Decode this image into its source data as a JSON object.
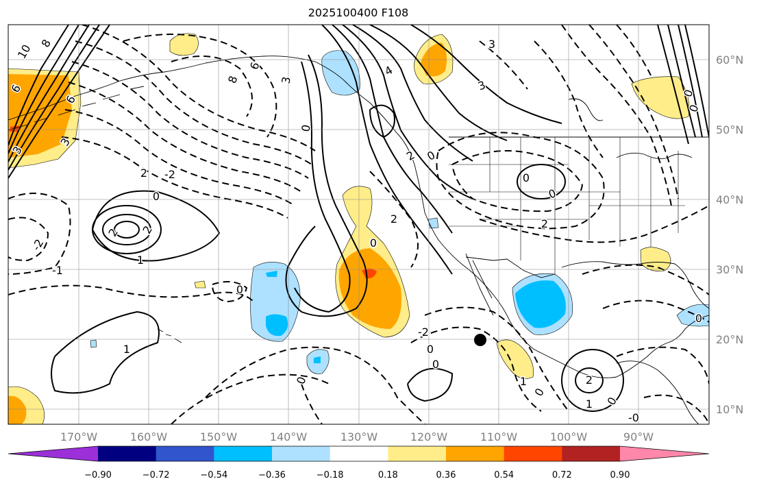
{
  "title": "2025100400 F108",
  "map": {
    "projection": "cylindrical",
    "lon_range": [
      -180,
      -80
    ],
    "lat_range": [
      8,
      65
    ],
    "lat_ticks": [
      "60°N",
      "50°N",
      "40°N",
      "30°N",
      "20°N",
      "10°N"
    ],
    "lon_ticks": [
      "170°W",
      "160°W",
      "150°W",
      "140°W",
      "130°W",
      "120°W",
      "110°W",
      "100°W",
      "90°W"
    ],
    "grid": true,
    "marker": {
      "name": "storm-center",
      "lon": -113,
      "lat": 20,
      "color": "#000000"
    }
  },
  "contour_labels": [
    "10",
    "8",
    "6",
    "6",
    "3",
    "3",
    "8",
    "6",
    "3",
    "4",
    "3",
    "0",
    "3",
    "2",
    "0",
    "2",
    "-2",
    "0",
    "2",
    "2",
    "1",
    "-2",
    "-1",
    "0",
    "1",
    "0",
    "2",
    "2",
    "0",
    "-2",
    "0",
    "0",
    "0",
    "1",
    "0",
    "2",
    "1",
    "0",
    "-0",
    "0",
    "0",
    "0",
    "0"
  ],
  "colorbar": {
    "colors": [
      "#9b30d9",
      "#000080",
      "#3055cc",
      "#00bfff",
      "#ade1ff",
      "#ffffff",
      "#ffed89",
      "#ffa500",
      "#ff4500",
      "#b22222",
      "#ff88aa"
    ],
    "tick_labels": [
      "−0.90",
      "−0.72",
      "−0.54",
      "−0.36",
      "−0.18",
      "0.18",
      "0.36",
      "0.54",
      "0.72",
      "0.90"
    ]
  }
}
